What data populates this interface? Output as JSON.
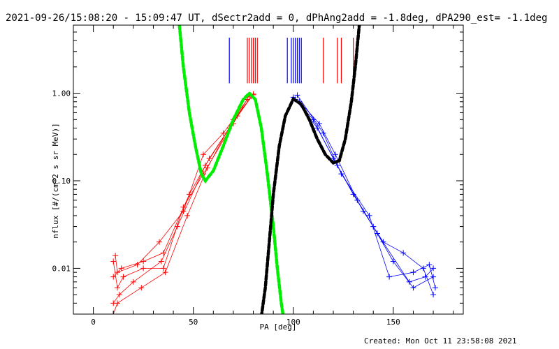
{
  "chart_data": {
    "type": "line",
    "title": "2021-09-26/15:08:20 - 15:09:47 UT, dSectr2add = 0, dPhAng2add = -1.8deg, dPA290_est= -1.1deg",
    "xlabel": "PA [deg]",
    "ylabel": "nflux [#/(cm^2 s sr MeV)]",
    "footer": "Created: Mon Oct 11 23:58:08 2021",
    "xlim": [
      -10,
      185
    ],
    "ylim": [
      0.003,
      6
    ],
    "yscale": "log",
    "grid": false,
    "x_ticks": [
      0,
      50,
      100,
      150
    ],
    "x_tick_labels": [
      "0",
      "50",
      "100",
      "150"
    ],
    "y_ticks": [
      0.01,
      0.1,
      1.0
    ],
    "y_tick_labels": [
      "0.01",
      "0.10",
      "1.00"
    ],
    "colors": {
      "red": "#ff0000",
      "blue": "#0000ff",
      "green": "#00ee00",
      "black": "#000000"
    },
    "series": [
      {
        "color": "red",
        "style": "line-plus",
        "points": [
          [
            10,
            0.012
          ],
          [
            12,
            0.006
          ],
          [
            15,
            0.008
          ],
          [
            25,
            0.01
          ],
          [
            35,
            0.01
          ],
          [
            45,
            0.05
          ],
          [
            55,
            0.12
          ],
          [
            70,
            0.45
          ],
          [
            78,
            0.95
          ],
          [
            10,
            0.004
          ],
          [
            13,
            0.005
          ],
          [
            20,
            0.007
          ],
          [
            34,
            0.012
          ],
          [
            42,
            0.03
          ],
          [
            56,
            0.15
          ],
          [
            68,
            0.4
          ],
          [
            80,
            0.98
          ],
          [
            10,
            0.008
          ],
          [
            14,
            0.01
          ],
          [
            25,
            0.012
          ],
          [
            35,
            0.015
          ],
          [
            48,
            0.07
          ],
          [
            58,
            0.18
          ],
          [
            72,
            0.55
          ],
          [
            79,
            0.92
          ],
          [
            11,
            0.014
          ],
          [
            12,
            0.009
          ],
          [
            22,
            0.011
          ],
          [
            33,
            0.02
          ],
          [
            45,
            0.045
          ],
          [
            55,
            0.2
          ],
          [
            65,
            0.35
          ],
          [
            77,
            0.85
          ],
          [
            10,
            0.003
          ],
          [
            12,
            0.004
          ],
          [
            24,
            0.006
          ],
          [
            36,
            0.009
          ],
          [
            47,
            0.04
          ],
          [
            57,
            0.14
          ],
          [
            70,
            0.5
          ],
          [
            80,
            0.96
          ]
        ]
      },
      {
        "color": "blue",
        "style": "line-plus",
        "points": [
          [
            100,
            0.9
          ],
          [
            110,
            0.5
          ],
          [
            120,
            0.18
          ],
          [
            130,
            0.07
          ],
          [
            140,
            0.03
          ],
          [
            150,
            0.012
          ],
          [
            160,
            0.006
          ],
          [
            170,
            0.008
          ],
          [
            101,
            0.85
          ],
          [
            112,
            0.4
          ],
          [
            122,
            0.15
          ],
          [
            135,
            0.045
          ],
          [
            145,
            0.02
          ],
          [
            155,
            0.015
          ],
          [
            165,
            0.01
          ],
          [
            170,
            0.005
          ],
          [
            102,
            0.95
          ],
          [
            115,
            0.35
          ],
          [
            124,
            0.12
          ],
          [
            138,
            0.04
          ],
          [
            148,
            0.008
          ],
          [
            160,
            0.009
          ],
          [
            168,
            0.011
          ],
          [
            171,
            0.006
          ],
          [
            103,
            0.8
          ],
          [
            113,
            0.45
          ],
          [
            121,
            0.2
          ],
          [
            132,
            0.06
          ],
          [
            142,
            0.025
          ],
          [
            158,
            0.007
          ],
          [
            166,
            0.008
          ],
          [
            170,
            0.01
          ]
        ]
      },
      {
        "color": "green",
        "style": "dashed",
        "points": [
          [
            43,
            6.0
          ],
          [
            45,
            2.0
          ],
          [
            48,
            0.6
          ],
          [
            51,
            0.25
          ],
          [
            54,
            0.12
          ],
          [
            56,
            0.1
          ],
          [
            60,
            0.13
          ],
          [
            65,
            0.25
          ],
          [
            70,
            0.5
          ],
          [
            75,
            0.85
          ],
          [
            78,
            1.0
          ],
          [
            81,
            0.85
          ],
          [
            84,
            0.4
          ],
          [
            87,
            0.12
          ],
          [
            90,
            0.03
          ],
          [
            92,
            0.01
          ],
          [
            94,
            0.004
          ],
          [
            95,
            0.0028
          ]
        ]
      },
      {
        "color": "black",
        "style": "dashed",
        "points": [
          [
            84,
            0.0028
          ],
          [
            86,
            0.006
          ],
          [
            88,
            0.02
          ],
          [
            90,
            0.07
          ],
          [
            93,
            0.25
          ],
          [
            96,
            0.55
          ],
          [
            100,
            0.86
          ],
          [
            104,
            0.75
          ],
          [
            108,
            0.5
          ],
          [
            112,
            0.3
          ],
          [
            116,
            0.2
          ],
          [
            120,
            0.16
          ],
          [
            123,
            0.17
          ],
          [
            126,
            0.3
          ],
          [
            129,
            0.8
          ],
          [
            131,
            2.0
          ],
          [
            133,
            6.0
          ]
        ]
      }
    ],
    "markers": [
      {
        "color": "blue",
        "x": [
          68,
          97,
          99,
          100,
          101,
          102,
          103,
          104
        ]
      },
      {
        "color": "red",
        "x": [
          77,
          78,
          79,
          80,
          81,
          82,
          115,
          122,
          124,
          130
        ]
      }
    ]
  }
}
